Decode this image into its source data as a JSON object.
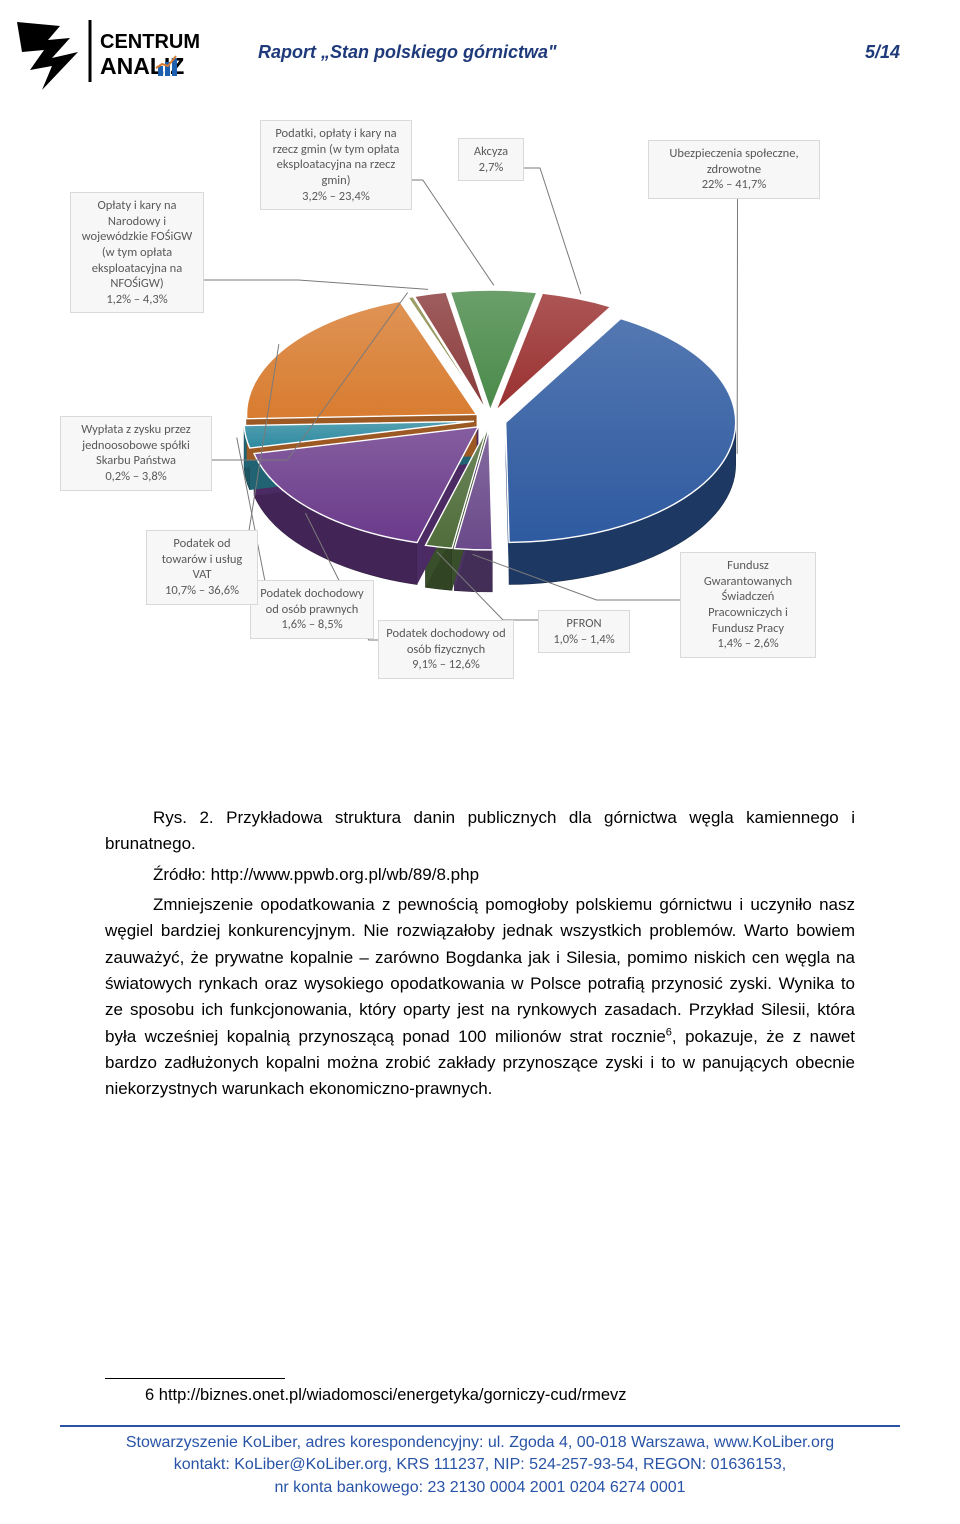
{
  "header": {
    "title": "Raport „Stan polskiego górnictwa\"",
    "page": "5/14",
    "logo_text_top": "CENTRUM",
    "logo_text_bottom": "ANALIZ"
  },
  "chart": {
    "type": "3d-pie-exploded",
    "label_bg": "#f7f7f7",
    "label_border": "#d9d9d9",
    "label_text_color": "#595959",
    "slices": [
      {
        "key": "ubezp",
        "label": "Ubezpieczenia społeczne, zdrowotne\n22% – 41,7%",
        "value": 22.0,
        "color": "#2e5aa0"
      },
      {
        "key": "fgsp",
        "label": "Fundusz Gwarantowanych Świadczeń Pracowniczych i Fundusz Pracy\n1,4% – 2,6%",
        "value": 1.4,
        "color": "#6a4a8a"
      },
      {
        "key": "pfron",
        "label": "PFRON\n1,0% – 1,4%",
        "value": 1.0,
        "color": "#4f6d3a"
      },
      {
        "key": "pit",
        "label": "Podatek dochodowy od osób fizycznych\n9,1% – 12,6%",
        "value": 9.1,
        "color": "#6a3a8a"
      },
      {
        "key": "cit",
        "label": "Podatek dochodowy od osób prawnych\n1,6% – 8,5%",
        "value": 1.6,
        "color": "#2e8aa0"
      },
      {
        "key": "vat",
        "label": "Podatek od towarów i usług VAT\n10,7% – 36,6%",
        "value": 10.7,
        "color": "#d87c30"
      },
      {
        "key": "wyplata",
        "label": "Wypłata z zysku przez jednoosobowe spółki Skarbu Państwa\n0,2% – 3,8%",
        "value": 0.2,
        "color": "#8a8a4a"
      },
      {
        "key": "fos",
        "label": "Opłaty i kary na Narodowy i wojewódzkie FOŚiGW (w tym opłata eksploatacyjna na NFOŚiGW)\n1,2% – 4,3%",
        "value": 1.2,
        "color": "#8a3a3a"
      },
      {
        "key": "gminy",
        "label": "Podatki, opłaty i kary na rzecz gmin (w tym opłata eksploatacyjna na rzecz gmin)\n3,2% – 23,4%",
        "value": 3.2,
        "color": "#4a8a4a"
      },
      {
        "key": "akcyza",
        "label": "Akcyza\n2,7%",
        "value": 2.7,
        "color": "#9a3030"
      }
    ]
  },
  "body": {
    "caption_prefix": "Rys. 2.",
    "caption_rest": "  Przykładowa struktura danin publicznych dla górnictwa węgla kamiennego i brunatnego.",
    "source_label": "Źródło: ",
    "source_url": "http://www.ppwb.org.pl/wb/89/8.php",
    "paragraph": "Zmniejszenie opodatkowania z pewnością pomogłoby polskiemu górnictwu i uczyniło nasz węgiel bardziej konkurencyjnym. Nie rozwiązałoby jednak wszystkich problemów. Warto bowiem zauważyć, że prywatne kopalnie – zarówno Bogdanka jak i Silesia, pomimo niskich cen węgla na światowych rynkach oraz wysokiego opodatkowania w Polsce potrafią przynosić zyski. Wynika to ze sposobu ich funkcjonowania, który oparty jest na rynkowych zasadach. Przykład Silesii, która była wcześniej kopalnią przynoszącą ponad 100 milionów strat rocznie",
    "paragraph_after_sup": ", pokazuje, że z nawet bardzo zadłużonych kopalni można zrobić zakłady przynoszące zyski i to w panujących obecnie niekorzystnych warunkach ekonomiczno-prawnych.",
    "footnote_ref": "6"
  },
  "footnote": {
    "num": "6",
    "text": " http://biznes.onet.pl/wiadomosci/energetyka/gorniczy-cud/rmevz"
  },
  "footer": {
    "line1": "Stowarzyszenie KoLiber, adres korespondencyjny: ul. Zgoda 4, 00-018 Warszawa, www.KoLiber.org",
    "line2": "kontakt: KoLiber@KoLiber.org, KRS 111237, NIP: 524-257-93-54, REGON: 01636153,",
    "line3": "nr konta bankowego: 23 2130 0004 2001 0204 6274 0001"
  }
}
